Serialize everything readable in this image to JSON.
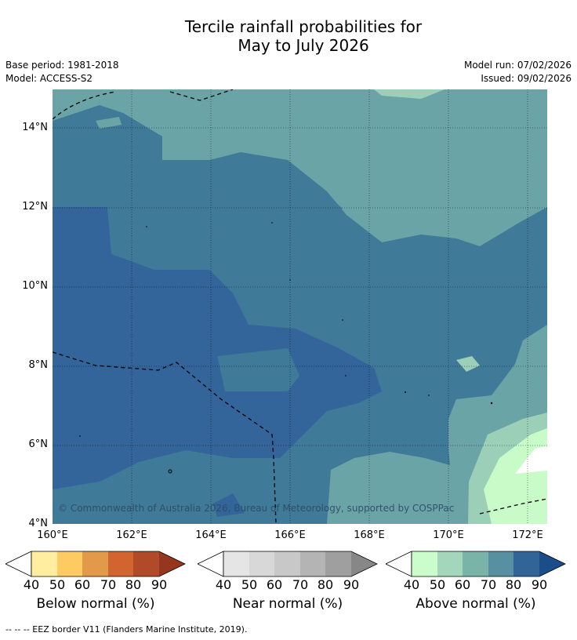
{
  "title_line1": "Tercile rainfall probabilities for",
  "title_line2": "May to July 2026",
  "base_period": "Base period: 1981-2018",
  "model": "Model: ACCESS-S2",
  "model_run": "Model run: 07/02/2026",
  "issued": "Issued: 09/02/2026",
  "copyright": "© Commonwealth of Australia 2026, Bureau of Meteorology, supported by COSPPac",
  "lat_labels": [
    "14°N",
    "12°N",
    "10°N",
    "8°N",
    "6°N",
    "4°N"
  ],
  "lon_labels": [
    "160°E",
    "162°E",
    "164°E",
    "166°E",
    "168°E",
    "170°E",
    "172°E"
  ],
  "colorbars": [
    {
      "label": "Below normal (%)",
      "ticks": [
        "40",
        "50",
        "60",
        "70",
        "80",
        "90"
      ],
      "colors": [
        "#ffeea0",
        "#fecb63",
        "#e3994a",
        "#d2652f",
        "#b14a28",
        "#96361f"
      ]
    },
    {
      "label": "Near normal (%)",
      "ticks": [
        "40",
        "50",
        "60",
        "70",
        "80",
        "90"
      ],
      "colors": [
        "#e5e5e5",
        "#d8d8d8",
        "#c8c8c8",
        "#b4b4b4",
        "#9f9f9f",
        "#878787"
      ]
    },
    {
      "label": "Above normal (%)",
      "ticks": [
        "40",
        "50",
        "60",
        "70",
        "80",
        "90"
      ],
      "colors": [
        "#cbfccb",
        "#a3d6bb",
        "#7ab4a9",
        "#5690a1",
        "#316597",
        "#1a4d8a"
      ]
    }
  ],
  "footnote": "--  --  -- EEZ border V11 (Flanders Marine Institute, 2019)."
}
